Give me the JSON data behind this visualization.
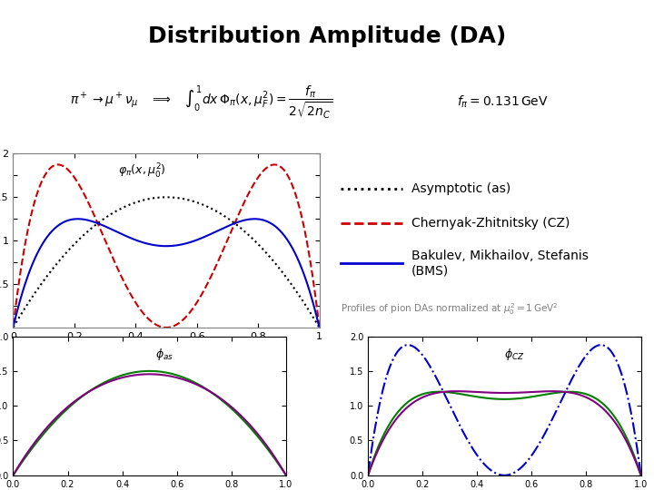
{
  "title": "Distribution Amplitude (DA)",
  "title_fontsize": 18,
  "title_fontweight": "bold",
  "bg_color": "#ffffff",
  "legend_lines": [
    {
      "color": "black",
      "linestyle": "dotted",
      "linewidth": 1.5,
      "label": "Asymptotic (as)"
    },
    {
      "color": "#cc0000",
      "linestyle": "dashed",
      "linewidth": 1.5,
      "label": "Chernyak-Zhitnitsky (CZ)"
    },
    {
      "color": "#0000cc",
      "linestyle": "solid",
      "linewidth": 1.5,
      "label": "Bakulev, Mikhailov, Stefanis\n(BMS)"
    }
  ],
  "profiles_note": "Profiles of pion DAs normalized at $\\mu_0^2 = 1\\,\\mathrm{GeV}^2$",
  "formula_left": "$\\pi^+ \\to \\mu^+\\nu_\\mu \\quad\\Longrightarrow\\quad \\int_0^1 dx\\,\\Phi_\\pi(x,\\mu_F^2) = \\dfrac{f_\\pi}{2\\sqrt{2n_C}}$",
  "formula_right": "$f_\\pi = 0.131\\,\\mathrm{GeV}$"
}
